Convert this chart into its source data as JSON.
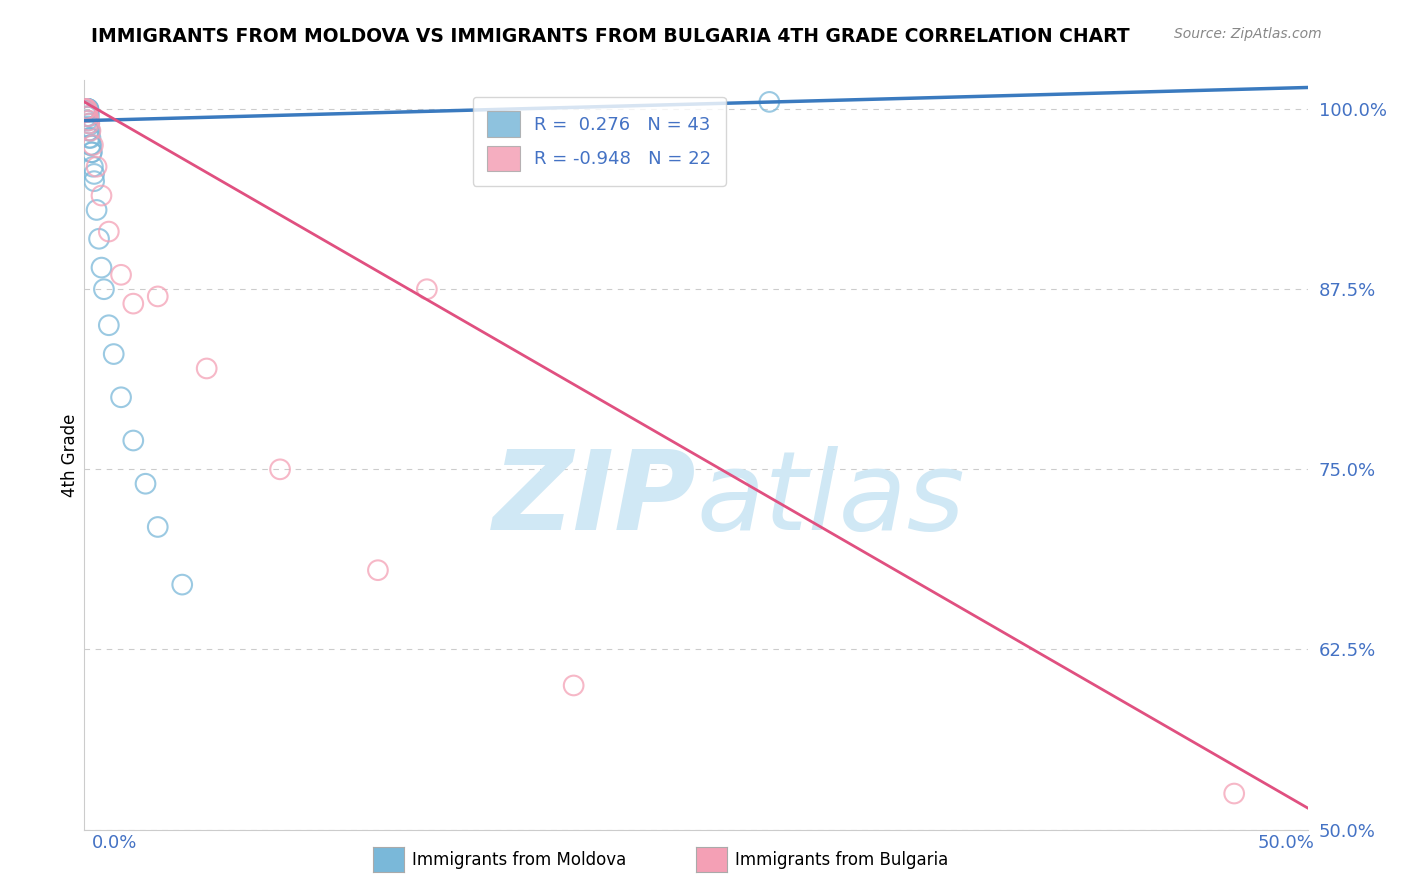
{
  "title": "IMMIGRANTS FROM MOLDOVA VS IMMIGRANTS FROM BULGARIA 4TH GRADE CORRELATION CHART",
  "source": "Source: ZipAtlas.com",
  "ylabel": "4th Grade",
  "yticks": [
    50.0,
    62.5,
    75.0,
    87.5,
    100.0
  ],
  "ytick_labels": [
    "50.0%",
    "62.5%",
    "75.0%",
    "87.5%",
    "100.0%"
  ],
  "xlim": [
    0.0,
    50.0
  ],
  "ylim": [
    50.0,
    102.0
  ],
  "moldova_R": 0.276,
  "moldova_N": 43,
  "bulgaria_R": -0.948,
  "bulgaria_N": 22,
  "blue_color": "#7ab8d9",
  "pink_color": "#f4a0b5",
  "blue_line_color": "#3a7abf",
  "pink_line_color": "#e05080",
  "watermark_color": "#d0e8f5",
  "tick_color": "#4472c4",
  "grid_color": "#cccccc",
  "moldova_points_x": [
    0.05,
    0.06,
    0.07,
    0.08,
    0.09,
    0.1,
    0.11,
    0.12,
    0.13,
    0.14,
    0.15,
    0.16,
    0.17,
    0.18,
    0.19,
    0.2,
    0.22,
    0.25,
    0.28,
    0.3,
    0.35,
    0.4,
    0.5,
    0.6,
    0.7,
    0.8,
    1.0,
    1.2,
    1.5,
    2.0,
    2.5,
    3.0,
    4.0,
    0.08,
    0.1,
    0.12,
    0.15,
    0.18,
    0.2,
    0.25,
    0.3,
    0.4,
    28.0
  ],
  "moldova_points_y": [
    100.0,
    100.0,
    100.0,
    100.0,
    100.0,
    100.0,
    100.0,
    100.0,
    100.0,
    100.0,
    100.0,
    100.0,
    100.0,
    99.8,
    99.5,
    99.0,
    98.5,
    98.0,
    97.5,
    97.0,
    96.0,
    95.0,
    93.0,
    91.0,
    89.0,
    87.5,
    85.0,
    83.0,
    80.0,
    77.0,
    74.0,
    71.0,
    67.0,
    99.8,
    99.5,
    99.2,
    98.8,
    98.5,
    98.0,
    97.5,
    97.0,
    95.5,
    100.5
  ],
  "bulgaria_points_x": [
    0.05,
    0.08,
    0.1,
    0.12,
    0.15,
    0.18,
    0.2,
    0.25,
    0.35,
    0.5,
    0.7,
    1.0,
    1.5,
    2.0,
    3.0,
    5.0,
    8.0,
    12.0,
    20.0,
    47.0
  ],
  "bulgaria_points_y": [
    100.0,
    100.0,
    100.0,
    99.8,
    99.5,
    99.2,
    99.0,
    98.5,
    97.5,
    96.0,
    94.0,
    91.5,
    88.5,
    86.5,
    87.0,
    82.0,
    75.0,
    68.0,
    60.0,
    52.5
  ],
  "bulgaria_isolated_x": 14.0,
  "bulgaria_isolated_y": 87.5,
  "moldova_line_x0": 0.0,
  "moldova_line_y0": 99.2,
  "moldova_line_x1": 50.0,
  "moldova_line_y1": 101.5,
  "bulgaria_line_x0": 0.0,
  "bulgaria_line_y0": 100.5,
  "bulgaria_line_x1": 50.0,
  "bulgaria_line_y1": 51.5
}
